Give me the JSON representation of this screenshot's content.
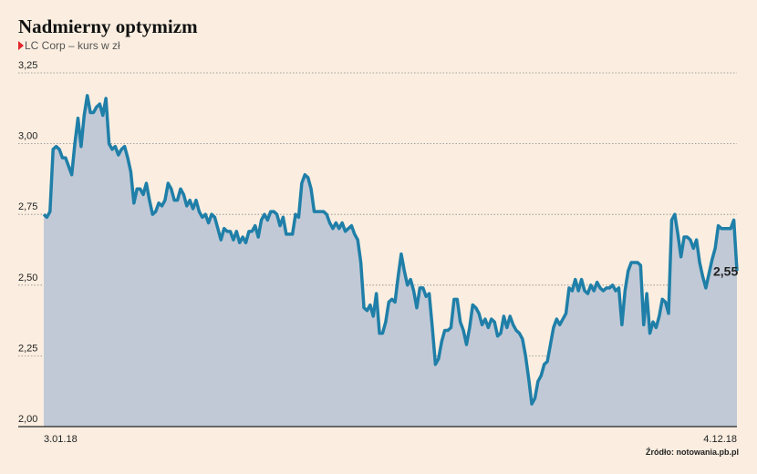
{
  "chart_data": {
    "type": "area",
    "title": "Nadmierny optymizm",
    "subtitle": "LC Corp – kurs w zł",
    "source": "Źródło: notowania.pb.pl",
    "categories": [
      "3.01.18",
      null,
      null,
      null,
      null,
      null,
      null,
      null,
      null,
      null,
      null,
      null,
      null,
      null,
      null,
      null,
      null,
      null,
      null,
      null,
      null,
      null,
      null,
      null,
      null,
      null,
      null,
      null,
      null,
      null,
      null,
      null,
      null,
      null,
      null,
      null,
      null,
      null,
      null,
      null,
      null,
      null,
      null,
      null,
      null,
      null,
      null,
      null,
      null,
      null,
      null,
      null,
      null,
      null,
      null,
      null,
      null,
      null,
      null,
      null,
      null,
      null,
      null,
      null,
      null,
      null,
      null,
      null,
      null,
      null,
      null,
      null,
      null,
      null,
      null,
      null,
      null,
      null,
      null,
      null,
      null,
      null,
      null,
      null,
      null,
      null,
      null,
      null,
      null,
      null,
      null,
      null,
      null,
      null,
      null,
      null,
      null,
      null,
      null,
      null,
      null,
      null,
      null,
      null,
      null,
      null,
      null,
      null,
      null,
      null,
      null,
      null,
      null,
      null,
      null,
      null,
      null,
      null,
      null,
      null,
      null,
      null,
      null,
      null,
      null,
      null,
      null,
      null,
      null,
      null,
      null,
      null,
      null,
      null,
      null,
      null,
      null,
      null,
      null,
      null,
      null,
      null,
      null,
      null,
      null,
      null,
      null,
      null,
      null,
      null,
      null,
      null,
      null,
      null,
      null,
      null,
      null,
      null,
      null,
      null,
      null,
      null,
      null,
      null,
      null,
      null,
      null,
      null,
      null,
      null,
      null,
      null,
      null,
      null,
      null,
      null,
      null,
      null,
      null,
      null,
      null,
      null,
      null,
      null,
      null,
      null,
      null,
      null,
      null,
      null,
      null,
      null,
      null,
      null,
      null,
      null,
      null,
      null,
      null,
      null,
      null,
      null,
      null,
      null,
      null,
      null,
      null,
      null,
      null,
      null,
      null,
      null,
      null,
      null,
      null,
      null,
      null,
      null,
      null,
      null,
      null,
      null,
      null,
      "4.12.18"
    ],
    "series": [
      {
        "color": "#1f7fa8",
        "fill": "#c1c9d6",
        "values": [
          2.75,
          2.74,
          2.76,
          2.98,
          2.99,
          2.98,
          2.95,
          2.95,
          2.92,
          2.89,
          3.0,
          3.09,
          2.99,
          3.1,
          3.17,
          3.11,
          3.11,
          3.13,
          3.14,
          3.1,
          3.16,
          3.0,
          2.98,
          2.99,
          2.96,
          2.98,
          2.99,
          2.95,
          2.9,
          2.79,
          2.84,
          2.84,
          2.82,
          2.86,
          2.8,
          2.75,
          2.76,
          2.79,
          2.78,
          2.8,
          2.86,
          2.84,
          2.8,
          2.8,
          2.84,
          2.82,
          2.78,
          2.8,
          2.77,
          2.8,
          2.76,
          2.74,
          2.75,
          2.72,
          2.75,
          2.74,
          2.7,
          2.66,
          2.7,
          2.69,
          2.69,
          2.66,
          2.69,
          2.65,
          2.67,
          2.65,
          2.69,
          2.69,
          2.71,
          2.67,
          2.73,
          2.75,
          2.73,
          2.76,
          2.76,
          2.75,
          2.71,
          2.74,
          2.68,
          2.68,
          2.68,
          2.75,
          2.74,
          2.86,
          2.89,
          2.88,
          2.84,
          2.76,
          2.76,
          2.76,
          2.76,
          2.75,
          2.72,
          2.7,
          2.72,
          2.7,
          2.72,
          2.69,
          2.7,
          2.71,
          2.68,
          2.66,
          2.58,
          2.42,
          2.41,
          2.43,
          2.39,
          2.47,
          2.33,
          2.33,
          2.37,
          2.44,
          2.45,
          2.44,
          2.53,
          2.61,
          2.55,
          2.5,
          2.52,
          2.48,
          2.42,
          2.49,
          2.49,
          2.46,
          2.47,
          2.35,
          2.22,
          2.24,
          2.3,
          2.34,
          2.34,
          2.35,
          2.45,
          2.45,
          2.37,
          2.34,
          2.29,
          2.35,
          2.43,
          2.42,
          2.4,
          2.36,
          2.38,
          2.35,
          2.38,
          2.37,
          2.32,
          2.33,
          2.39,
          2.35,
          2.39,
          2.36,
          2.34,
          2.33,
          2.31,
          2.25,
          2.17,
          2.08,
          2.1,
          2.16,
          2.18,
          2.22,
          2.23,
          2.29,
          2.35,
          2.38,
          2.36,
          2.38,
          2.4,
          2.49,
          2.48,
          2.52,
          2.48,
          2.52,
          2.48,
          2.47,
          2.5,
          2.48,
          2.51,
          2.49,
          2.48,
          2.49,
          2.49,
          2.5,
          2.48,
          2.49,
          2.36,
          2.48,
          2.55,
          2.58,
          2.58,
          2.58,
          2.57,
          2.36,
          2.47,
          2.33,
          2.37,
          2.35,
          2.39,
          2.45,
          2.44,
          2.4,
          2.73,
          2.75,
          2.68,
          2.6,
          2.67,
          2.67,
          2.66,
          2.63,
          2.66,
          2.58,
          2.53,
          2.49,
          2.54,
          2.59,
          2.63,
          2.71,
          2.7,
          2.7,
          2.7,
          2.7,
          2.73,
          2.55
        ],
        "value_labels": [
          null,
          null,
          null,
          null,
          null,
          null,
          null,
          null,
          null,
          null,
          null,
          null,
          null,
          null,
          null,
          null,
          null,
          null,
          null,
          null,
          null,
          null,
          null,
          null,
          null,
          null,
          null,
          null,
          null,
          null,
          null,
          null,
          null,
          null,
          null,
          null,
          null,
          null,
          null,
          null,
          null,
          null,
          null,
          null,
          null,
          null,
          null,
          null,
          null,
          null,
          null,
          null,
          null,
          null,
          null,
          null,
          null,
          null,
          null,
          null,
          null,
          null,
          null,
          null,
          null,
          null,
          null,
          null,
          null,
          null,
          null,
          null,
          null,
          null,
          null,
          null,
          null,
          null,
          null,
          null,
          null,
          null,
          null,
          null,
          null,
          null,
          null,
          null,
          null,
          null,
          null,
          null,
          null,
          null,
          null,
          null,
          null,
          null,
          null,
          null,
          null,
          null,
          null,
          null,
          null,
          null,
          null,
          null,
          null,
          null,
          null,
          null,
          null,
          null,
          null,
          null,
          null,
          null,
          null,
          null,
          null,
          null,
          null,
          null,
          null,
          null,
          null,
          null,
          null,
          null,
          null,
          null,
          null,
          null,
          null,
          null,
          null,
          null,
          null,
          null,
          null,
          null,
          null,
          null,
          null,
          null,
          null,
          null,
          null,
          null,
          null,
          null,
          null,
          null,
          null,
          null,
          null,
          null,
          null,
          null,
          null,
          null,
          null,
          null,
          null,
          null,
          null,
          null,
          null,
          null,
          null,
          null,
          null,
          null,
          null,
          null,
          null,
          null,
          null,
          null,
          null,
          null,
          null,
          null,
          null,
          null,
          null,
          null,
          null,
          null,
          null,
          null,
          null,
          null,
          null,
          null,
          null,
          null,
          null,
          null,
          null,
          null,
          null,
          null,
          null,
          null,
          null,
          null,
          null,
          null,
          null,
          null,
          null,
          null,
          null,
          null,
          null,
          null,
          null,
          null,
          null,
          null,
          null,
          "2,55"
        ]
      }
    ],
    "ylim": [
      2.0,
      3.25
    ],
    "yticks": [
      {
        "value": 2.0,
        "label": "2,00"
      },
      {
        "value": 2.25,
        "label": "2,25"
      },
      {
        "value": 2.5,
        "label": "2,50"
      },
      {
        "value": 2.75,
        "label": "2,75"
      },
      {
        "value": 3.0,
        "label": "3,00"
      },
      {
        "value": 3.25,
        "label": "3,25"
      }
    ],
    "grid": true
  }
}
